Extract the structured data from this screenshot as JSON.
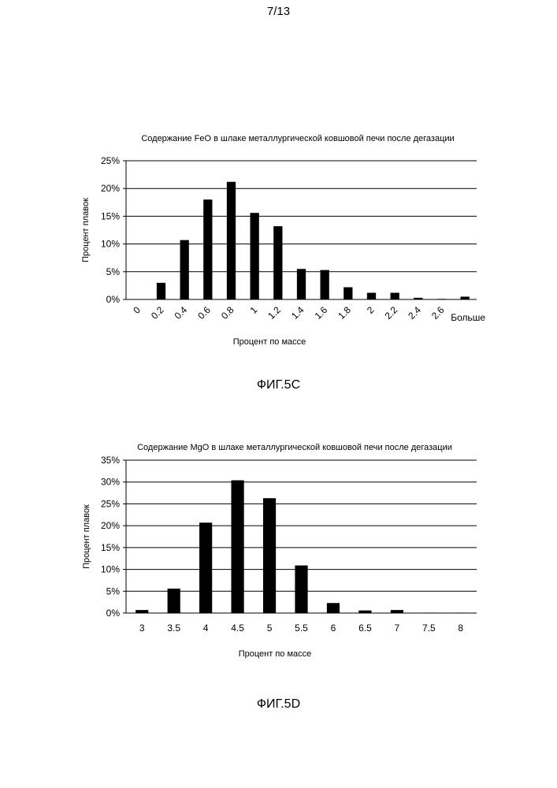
{
  "page": {
    "number": "7/13"
  },
  "figures": [
    "ФИГ.5C",
    "ФИГ.5D"
  ],
  "chart_data": [
    {
      "type": "bar",
      "title": "Содержание FeO в шлаке металлургической ковшовой печи после дегазации",
      "xlabel": "Процент по массе",
      "ylabel": "Процент плавок",
      "categories": [
        "0",
        "0.2",
        "0.4",
        "0.6",
        "0.8",
        "1",
        "1.2",
        "1.4",
        "1.6",
        "1.8",
        "2",
        "2.2",
        "2.4",
        "2.6",
        "Больше"
      ],
      "values": [
        0,
        3.0,
        10.7,
        18.0,
        21.2,
        15.6,
        13.2,
        5.5,
        5.3,
        2.2,
        1.2,
        1.2,
        0.3,
        0.1,
        0.5
      ],
      "y_ticks": [
        "0%",
        "5%",
        "10%",
        "15%",
        "20%",
        "25%"
      ],
      "ylim": [
        0,
        25
      ],
      "grid": true,
      "x_tick_rotation": "rotated"
    },
    {
      "type": "bar",
      "title": "Содержание MgO в шлаке металлургической ковшовой печи после дегазации",
      "xlabel": "Процент по массе",
      "ylabel": "Процент плавок",
      "categories": [
        "3",
        "3.5",
        "4",
        "4.5",
        "5",
        "5.5",
        "6",
        "6.5",
        "7",
        "7.5",
        "8"
      ],
      "values": [
        0.7,
        5.6,
        20.7,
        30.4,
        26.3,
        10.9,
        2.3,
        0.6,
        0.7,
        0.1,
        0.1
      ],
      "y_ticks": [
        "0%",
        "5%",
        "10%",
        "15%",
        "20%",
        "25%",
        "30%",
        "35%"
      ],
      "ylim": [
        0,
        35
      ],
      "grid": true,
      "x_tick_rotation": "none"
    }
  ],
  "colors": {
    "bar": "#000000",
    "grid": "#000000",
    "text": "#000000"
  }
}
